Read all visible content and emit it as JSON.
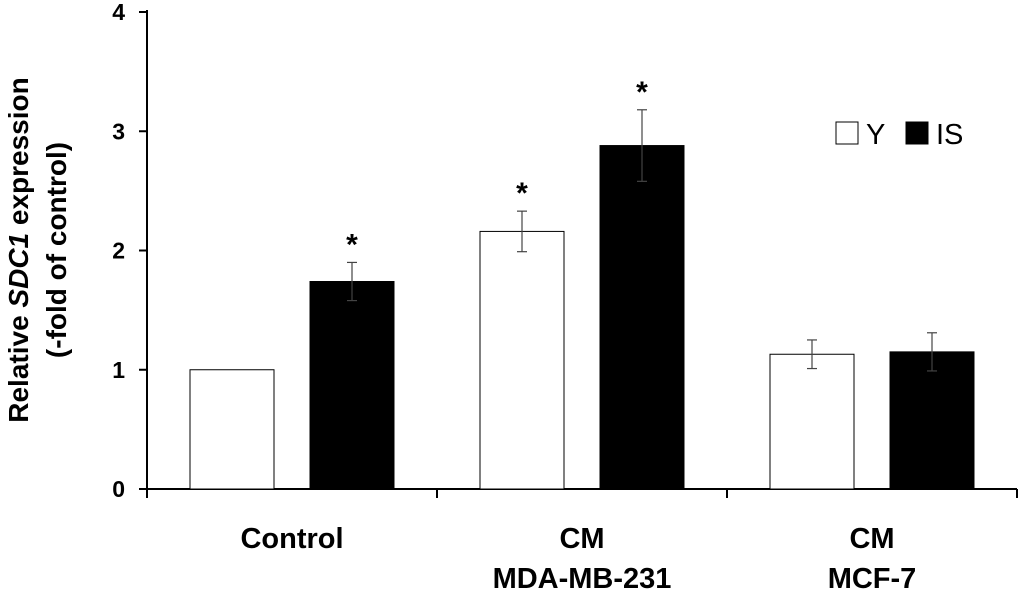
{
  "chart_data": {
    "type": "bar",
    "categories": [
      [
        "Control"
      ],
      [
        "CM",
        "MDA-MB-231"
      ],
      [
        "CM",
        "MCF-7"
      ]
    ],
    "series": [
      {
        "name": "Y",
        "color": "#ffffff",
        "values": [
          1.0,
          2.16,
          1.13
        ],
        "errors": [
          0,
          0.17,
          0.12
        ]
      },
      {
        "name": "IS",
        "color": "#000000",
        "values": [
          1.74,
          2.88,
          1.15
        ],
        "errors": [
          0.16,
          0.3,
          0.16
        ]
      }
    ],
    "significance": [
      {
        "series": "IS",
        "category_index": 0,
        "label": "*"
      },
      {
        "series": "Y",
        "category_index": 1,
        "label": "*"
      },
      {
        "series": "IS",
        "category_index": 1,
        "label": "*"
      }
    ],
    "ylabel_line1_prefix": "Relative ",
    "ylabel_line1_italic": "SDC1",
    "ylabel_line1_suffix": " expression",
    "ylabel_line2": "(-fold of control)",
    "xlabel": "",
    "ylim": [
      0,
      4
    ],
    "yticks": [
      0,
      1,
      2,
      3,
      4
    ],
    "legend_position": "top-right"
  }
}
